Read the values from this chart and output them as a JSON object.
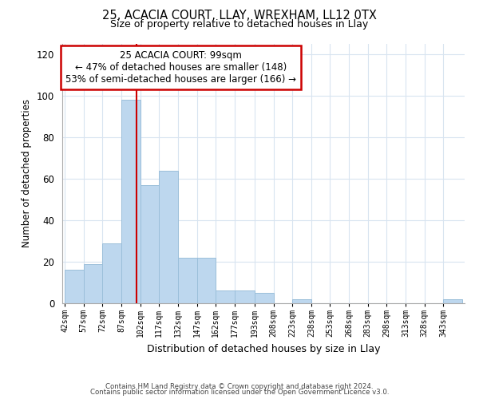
{
  "title": "25, ACACIA COURT, LLAY, WREXHAM, LL12 0TX",
  "subtitle": "Size of property relative to detached houses in Llay",
  "xlabel": "Distribution of detached houses by size in Llay",
  "ylabel": "Number of detached properties",
  "bar_color": "#bdd7ee",
  "bar_edge_color": "#9bbfda",
  "vline_x": 99,
  "vline_color": "#cc0000",
  "annotation_title": "25 ACACIA COURT: 99sqm",
  "annotation_line1": "← 47% of detached houses are smaller (148)",
  "annotation_line2": "53% of semi-detached houses are larger (166) →",
  "annotation_box_color": "white",
  "annotation_box_edge": "#cc0000",
  "bin_edges": [
    42,
    57,
    72,
    87,
    102,
    117,
    132,
    147,
    162,
    177,
    193,
    208,
    223,
    238,
    253,
    268,
    283,
    298,
    313,
    328,
    343,
    358
  ],
  "bin_labels": [
    "42sqm",
    "57sqm",
    "72sqm",
    "87sqm",
    "102sqm",
    "117sqm",
    "132sqm",
    "147sqm",
    "162sqm",
    "177sqm",
    "193sqm",
    "208sqm",
    "223sqm",
    "238sqm",
    "253sqm",
    "268sqm",
    "283sqm",
    "298sqm",
    "313sqm",
    "328sqm",
    "343sqm"
  ],
  "counts": [
    16,
    19,
    29,
    98,
    57,
    64,
    22,
    22,
    6,
    6,
    5,
    0,
    2,
    0,
    0,
    0,
    0,
    0,
    0,
    0,
    2
  ],
  "ylim": [
    0,
    125
  ],
  "yticks": [
    0,
    20,
    40,
    60,
    80,
    100,
    120
  ],
  "grid_color": "#d8e4f0",
  "footnote1": "Contains HM Land Registry data © Crown copyright and database right 2024.",
  "footnote2": "Contains public sector information licensed under the Open Government Licence v3.0."
}
